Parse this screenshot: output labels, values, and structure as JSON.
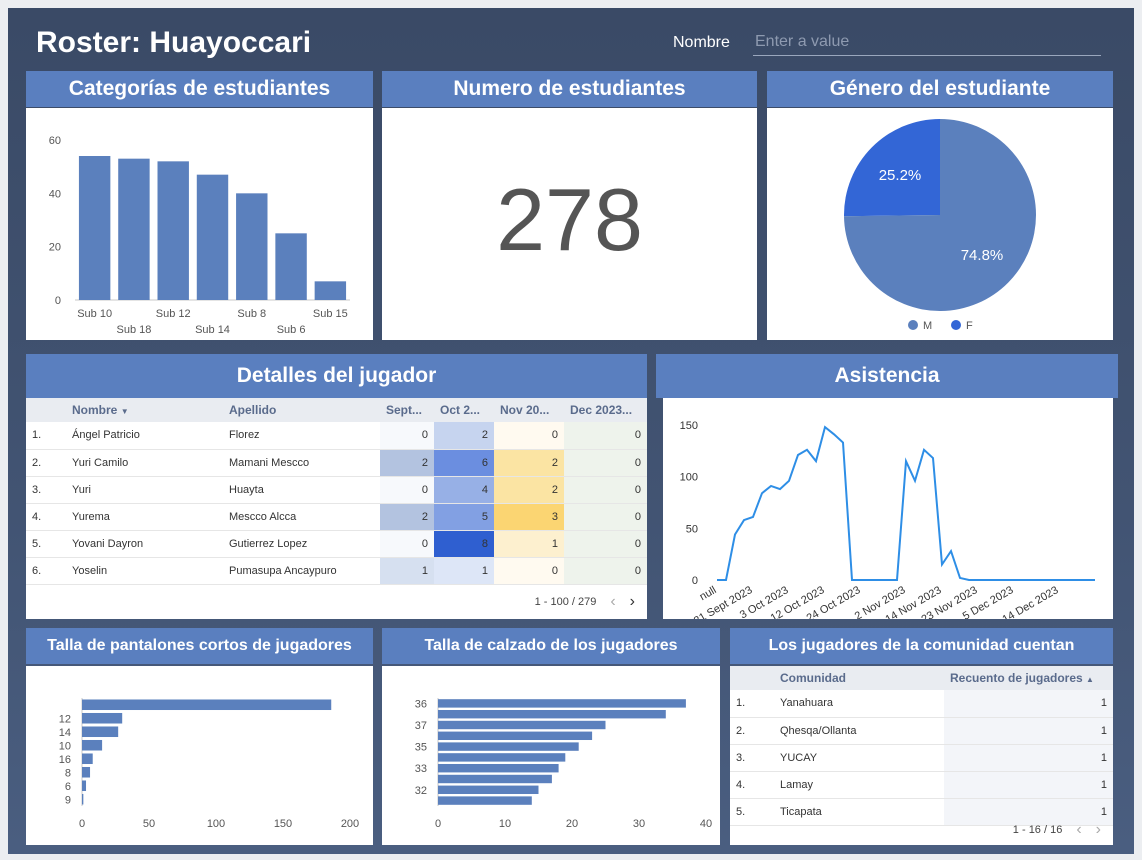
{
  "header": {
    "title": "Roster: Huayoccari",
    "filter_label": "Nombre",
    "filter_placeholder": "Enter a value"
  },
  "colors": {
    "accent": "#5a7fbf",
    "bar": "#5b80bd",
    "line": "#2e8ee6",
    "pie_m": "#5b80bd",
    "pie_f": "#3366d6"
  },
  "panels": {
    "categorias": "Categorías de estudiantes",
    "numero": "Numero de estudiantes",
    "genero": "Género del estudiante",
    "detalles": "Detalles del jugador",
    "asistencia": "Asistencia",
    "pantalones": "Talla de pantalones cortos de jugadores",
    "calzado": "Talla de calzado de los jugadores",
    "comunidad": "Los jugadores de la comunidad cuentan"
  },
  "scorecard": {
    "value": "278"
  },
  "genero": {
    "pct_f": "25.2%",
    "pct_m": "74.8%",
    "legend_m": "M",
    "legend_f": "F"
  },
  "chart_data": [
    {
      "type": "bar",
      "title": "Categorías de estudiantes",
      "categories": [
        "Sub 10",
        "Sub 18",
        "Sub 12",
        "Sub 14",
        "Sub 8",
        "Sub 6",
        "Sub 15"
      ],
      "values": [
        54,
        53,
        52,
        47,
        40,
        25,
        7
      ],
      "ylim": [
        0,
        60
      ],
      "yticks": [
        0,
        20,
        40,
        60
      ]
    },
    {
      "type": "pie",
      "title": "Género del estudiante",
      "categories": [
        "M",
        "F"
      ],
      "values": [
        74.8,
        25.2
      ]
    },
    {
      "type": "line",
      "title": "Asistencia",
      "x": [
        "null",
        "",
        "",
        "",
        "21 Sept 2023",
        "",
        "",
        "",
        "3 Oct 2023",
        "",
        "",
        "",
        "12 Oct 2023",
        "",
        "",
        "",
        "24 Oct 2023",
        "",
        "",
        "",
        "",
        "2 Nov 2023",
        "",
        "",
        "",
        "14 Nov 2023",
        "",
        "",
        "",
        "23 Nov 2023",
        "",
        "",
        "",
        "5 Dec 2023",
        "",
        "",
        "",
        "",
        "14 Dec 2023",
        "",
        "",
        "",
        ""
      ],
      "values": [
        0,
        0,
        44,
        58,
        61,
        84,
        91,
        88,
        96,
        121,
        126,
        115,
        148,
        141,
        133,
        0,
        0,
        0,
        0,
        0,
        0,
        115,
        96,
        126,
        118,
        15,
        28,
        2,
        0,
        0,
        0,
        0,
        0,
        0,
        0,
        0,
        0,
        0,
        0,
        0,
        0,
        0,
        0
      ],
      "ylim": [
        0,
        150
      ],
      "yticks": [
        0,
        50,
        100,
        150
      ]
    },
    {
      "type": "bar",
      "orientation": "horizontal",
      "title": "Talla de pantalones cortos de jugadores",
      "categories": [
        "",
        "12",
        "14",
        "10",
        "16",
        "8",
        "6",
        "9"
      ],
      "values": [
        186,
        30,
        27,
        15,
        8,
        6,
        3,
        1
      ],
      "xlim": [
        0,
        200
      ],
      "xticks": [
        0,
        50,
        100,
        150,
        200
      ]
    },
    {
      "type": "bar",
      "orientation": "horizontal",
      "title": "Talla de calzado de los jugadores",
      "categories": [
        "36",
        "",
        "37",
        "",
        "35",
        "",
        "33",
        "",
        "32",
        ""
      ],
      "values": [
        37,
        34,
        25,
        23,
        21,
        19,
        18,
        17,
        15,
        14
      ],
      "xlim": [
        0,
        40
      ],
      "xticks": [
        0,
        10,
        20,
        30,
        40
      ]
    }
  ],
  "detalles": {
    "columns": [
      "Nombre",
      "Apellido",
      "Sept...",
      "Oct 2...",
      "Nov 20...",
      "Dec 2023..."
    ],
    "rows": [
      {
        "idx": "1.",
        "nombre": "Ángel Patricio",
        "apellido": "Florez",
        "sept": "0",
        "oct": "2",
        "nov": "0",
        "dec": "0"
      },
      {
        "idx": "2.",
        "nombre": "Yuri Camilo",
        "apellido": "Mamani Mescco",
        "sept": "2",
        "oct": "6",
        "nov": "2",
        "dec": "0"
      },
      {
        "idx": "3.",
        "nombre": "Yuri",
        "apellido": "Huayta",
        "sept": "0",
        "oct": "4",
        "nov": "2",
        "dec": "0"
      },
      {
        "idx": "4.",
        "nombre": "Yurema",
        "apellido": "Mescco Alcca",
        "sept": "2",
        "oct": "5",
        "nov": "3",
        "dec": "0"
      },
      {
        "idx": "5.",
        "nombre": "Yovani Dayron",
        "apellido": "Gutierrez Lopez",
        "sept": "0",
        "oct": "8",
        "nov": "1",
        "dec": "0"
      },
      {
        "idx": "6.",
        "nombre": "Yoselin",
        "apellido": "Pumasupa Ancaypuro",
        "sept": "1",
        "oct": "1",
        "nov": "0",
        "dec": "0"
      }
    ],
    "pager": "1 - 100 / 279"
  },
  "comunidad": {
    "columns": [
      "Comunidad",
      "Recuento de jugadores"
    ],
    "rows": [
      {
        "idx": "1.",
        "name": "Yanahuara",
        "count": "1"
      },
      {
        "idx": "2.",
        "name": "Qhesqa/Ollanta",
        "count": "1"
      },
      {
        "idx": "3.",
        "name": "YUCAY",
        "count": "1"
      },
      {
        "idx": "4.",
        "name": "Lamay",
        "count": "1"
      },
      {
        "idx": "5.",
        "name": "Ticapata",
        "count": "1"
      }
    ],
    "pager": "1 - 16 / 16"
  }
}
